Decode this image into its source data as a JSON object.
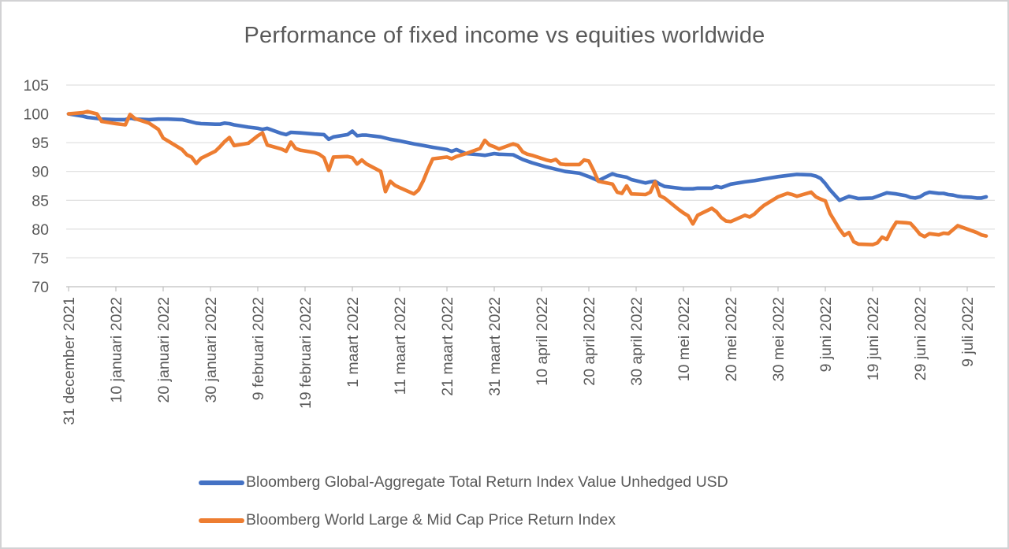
{
  "title": "Performance of fixed income vs equities worldwide",
  "colors": {
    "title_text": "#595959",
    "axis_text": "#595959",
    "gridline": "#d9d9d9",
    "axis_line": "#bfbfbf",
    "border": "#d2d2d4",
    "series_blue": "#4472C4",
    "series_orange": "#ED7D31"
  },
  "chart_data": {
    "type": "line",
    "title": "Performance of fixed income vs equities worldwide",
    "xlabel": "",
    "ylabel": "",
    "grid": true,
    "legend_position": "bottom",
    "y_axis": {
      "min": 70,
      "max": 105,
      "step": 5,
      "ticks": [
        105,
        100,
        95,
        90,
        85,
        80,
        75,
        70
      ]
    },
    "x_axis": {
      "unit": "days since 31 december 2021",
      "domain_days": [
        0,
        194
      ],
      "tick_interval_days": 10,
      "tick_labels": [
        "31 december 2021",
        "10 januari 2022",
        "20 januari 2022",
        "30 januari 2022",
        "9 februari 2022",
        "19 februari 2022",
        "1 maart 2022",
        "11 maart 2022",
        "21 maart 2022",
        "31 maart 2022",
        "10 april 2022",
        "20 april 2022",
        "30 april 2022",
        "10 mei 2022",
        "20 mei 2022",
        "30 mei 2022",
        "9 juni 2022",
        "19 juni 2022",
        "29 juni 2022",
        "9 juli 2022"
      ]
    },
    "series": [
      {
        "name": "Bloomberg Global-Aggregate Total Return Index Value Unhedged USD",
        "color": "#4472C4",
        "points": [
          [
            0,
            100
          ],
          [
            3,
            99.6
          ],
          [
            4,
            99.4
          ],
          [
            6,
            99.2
          ],
          [
            7,
            99.1
          ],
          [
            10,
            99.0
          ],
          [
            12,
            99.0
          ],
          [
            13,
            99.3
          ],
          [
            14,
            99.1
          ],
          [
            17,
            99.0
          ],
          [
            19,
            99.1
          ],
          [
            21,
            99.1
          ],
          [
            24,
            99.0
          ],
          [
            25,
            98.8
          ],
          [
            26,
            98.6
          ],
          [
            27,
            98.4
          ],
          [
            28,
            98.3
          ],
          [
            31,
            98.2
          ],
          [
            32,
            98.2
          ],
          [
            33,
            98.4
          ],
          [
            34,
            98.3
          ],
          [
            35,
            98.1
          ],
          [
            38,
            97.7
          ],
          [
            40,
            97.5
          ],
          [
            41,
            97.3
          ],
          [
            42,
            97.5
          ],
          [
            45,
            96.6
          ],
          [
            46,
            96.4
          ],
          [
            47,
            96.8
          ],
          [
            49,
            96.7
          ],
          [
            52,
            96.5
          ],
          [
            54,
            96.4
          ],
          [
            55,
            95.6
          ],
          [
            56,
            96.0
          ],
          [
            59,
            96.4
          ],
          [
            60,
            97.0
          ],
          [
            61,
            96.2
          ],
          [
            62,
            96.3
          ],
          [
            63,
            96.3
          ],
          [
            66,
            96.0
          ],
          [
            67,
            95.8
          ],
          [
            68,
            95.6
          ],
          [
            70,
            95.3
          ],
          [
            73,
            94.8
          ],
          [
            75,
            94.5
          ],
          [
            77,
            94.2
          ],
          [
            80,
            93.8
          ],
          [
            81,
            93.5
          ],
          [
            82,
            93.8
          ],
          [
            84,
            93.1
          ],
          [
            87,
            92.9
          ],
          [
            88,
            92.8
          ],
          [
            90,
            93.1
          ],
          [
            91,
            93.0
          ],
          [
            94,
            92.9
          ],
          [
            96,
            92.1
          ],
          [
            98,
            91.5
          ],
          [
            101,
            90.8
          ],
          [
            103,
            90.4
          ],
          [
            105,
            90.0
          ],
          [
            108,
            89.7
          ],
          [
            110,
            89.1
          ],
          [
            112,
            88.4
          ],
          [
            115,
            89.6
          ],
          [
            116,
            89.3
          ],
          [
            118,
            89.0
          ],
          [
            119,
            88.6
          ],
          [
            122,
            88.0
          ],
          [
            123,
            88.2
          ],
          [
            124,
            88.3
          ],
          [
            125,
            87.8
          ],
          [
            126,
            87.4
          ],
          [
            129,
            87.1
          ],
          [
            130,
            87.0
          ],
          [
            132,
            87.0
          ],
          [
            133,
            87.1
          ],
          [
            136,
            87.1
          ],
          [
            137,
            87.4
          ],
          [
            138,
            87.2
          ],
          [
            140,
            87.8
          ],
          [
            143,
            88.2
          ],
          [
            145,
            88.4
          ],
          [
            147,
            88.7
          ],
          [
            150,
            89.1
          ],
          [
            152,
            89.3
          ],
          [
            154,
            89.5
          ],
          [
            157,
            89.4
          ],
          [
            158,
            89.2
          ],
          [
            159,
            88.8
          ],
          [
            160,
            87.9
          ],
          [
            161,
            86.8
          ],
          [
            163,
            85.0
          ],
          [
            165,
            85.7
          ],
          [
            167,
            85.3
          ],
          [
            170,
            85.4
          ],
          [
            172,
            86.0
          ],
          [
            173,
            86.3
          ],
          [
            174,
            86.2
          ],
          [
            175,
            86.1
          ],
          [
            177,
            85.8
          ],
          [
            178,
            85.5
          ],
          [
            179,
            85.4
          ],
          [
            180,
            85.6
          ],
          [
            181,
            86.1
          ],
          [
            182,
            86.4
          ],
          [
            184,
            86.2
          ],
          [
            185,
            86.2
          ],
          [
            186,
            86.0
          ],
          [
            187,
            85.9
          ],
          [
            188,
            85.7
          ],
          [
            189,
            85.6
          ],
          [
            191,
            85.5
          ],
          [
            192,
            85.4
          ],
          [
            193,
            85.4
          ],
          [
            194,
            85.6
          ]
        ]
      },
      {
        "name": "Bloomberg World Large & Mid Cap Price Return Index",
        "color": "#ED7D31",
        "points": [
          [
            0,
            100
          ],
          [
            3,
            100.2
          ],
          [
            4,
            100.4
          ],
          [
            6,
            100.0
          ],
          [
            7,
            98.7
          ],
          [
            10,
            98.3
          ],
          [
            12,
            98.1
          ],
          [
            13,
            99.9
          ],
          [
            14,
            99.2
          ],
          [
            17,
            98.4
          ],
          [
            19,
            97.3
          ],
          [
            20,
            95.8
          ],
          [
            21,
            95.3
          ],
          [
            24,
            93.8
          ],
          [
            25,
            92.9
          ],
          [
            26,
            92.5
          ],
          [
            27,
            91.4
          ],
          [
            28,
            92.3
          ],
          [
            31,
            93.5
          ],
          [
            32,
            94.3
          ],
          [
            33,
            95.2
          ],
          [
            34,
            95.9
          ],
          [
            35,
            94.5
          ],
          [
            38,
            94.9
          ],
          [
            40,
            96.2
          ],
          [
            41,
            96.7
          ],
          [
            42,
            94.6
          ],
          [
            45,
            93.9
          ],
          [
            46,
            93.5
          ],
          [
            47,
            95.1
          ],
          [
            48,
            94.0
          ],
          [
            49,
            93.7
          ],
          [
            52,
            93.3
          ],
          [
            53,
            93.0
          ],
          [
            54,
            92.4
          ],
          [
            55,
            90.2
          ],
          [
            56,
            92.5
          ],
          [
            59,
            92.6
          ],
          [
            60,
            92.4
          ],
          [
            61,
            91.3
          ],
          [
            62,
            92.0
          ],
          [
            63,
            91.3
          ],
          [
            66,
            90.0
          ],
          [
            67,
            86.5
          ],
          [
            68,
            88.3
          ],
          [
            69,
            87.6
          ],
          [
            70,
            87.2
          ],
          [
            73,
            86.1
          ],
          [
            74,
            86.8
          ],
          [
            75,
            88.4
          ],
          [
            76,
            90.4
          ],
          [
            77,
            92.2
          ],
          [
            80,
            92.5
          ],
          [
            81,
            92.2
          ],
          [
            82,
            92.6
          ],
          [
            84,
            93.1
          ],
          [
            87,
            94.0
          ],
          [
            88,
            95.4
          ],
          [
            89,
            94.6
          ],
          [
            90,
            94.3
          ],
          [
            91,
            93.9
          ],
          [
            94,
            94.8
          ],
          [
            95,
            94.5
          ],
          [
            96,
            93.4
          ],
          [
            97,
            93.0
          ],
          [
            98,
            92.8
          ],
          [
            101,
            92.0
          ],
          [
            102,
            91.8
          ],
          [
            103,
            92.1
          ],
          [
            104,
            91.3
          ],
          [
            105,
            91.2
          ],
          [
            108,
            91.2
          ],
          [
            109,
            92.0
          ],
          [
            110,
            91.8
          ],
          [
            111,
            90.2
          ],
          [
            112,
            88.3
          ],
          [
            115,
            87.8
          ],
          [
            116,
            86.4
          ],
          [
            117,
            86.2
          ],
          [
            118,
            87.5
          ],
          [
            119,
            86.1
          ],
          [
            122,
            86.0
          ],
          [
            123,
            86.4
          ],
          [
            124,
            88.2
          ],
          [
            125,
            85.8
          ],
          [
            126,
            85.4
          ],
          [
            129,
            83.4
          ],
          [
            130,
            82.8
          ],
          [
            131,
            82.3
          ],
          [
            132,
            80.9
          ],
          [
            133,
            82.4
          ],
          [
            136,
            83.6
          ],
          [
            137,
            83.0
          ],
          [
            138,
            82.0
          ],
          [
            139,
            81.4
          ],
          [
            140,
            81.3
          ],
          [
            143,
            82.4
          ],
          [
            144,
            82.1
          ],
          [
            145,
            82.6
          ],
          [
            146,
            83.4
          ],
          [
            147,
            84.1
          ],
          [
            150,
            85.6
          ],
          [
            151,
            85.9
          ],
          [
            152,
            86.2
          ],
          [
            153,
            86.0
          ],
          [
            154,
            85.7
          ],
          [
            157,
            86.4
          ],
          [
            158,
            85.6
          ],
          [
            159,
            85.2
          ],
          [
            160,
            84.9
          ],
          [
            161,
            82.7
          ],
          [
            163,
            80.0
          ],
          [
            164,
            78.9
          ],
          [
            165,
            79.4
          ],
          [
            166,
            77.8
          ],
          [
            167,
            77.4
          ],
          [
            170,
            77.3
          ],
          [
            171,
            77.6
          ],
          [
            172,
            78.6
          ],
          [
            173,
            78.2
          ],
          [
            174,
            79.9
          ],
          [
            175,
            81.2
          ],
          [
            177,
            81.1
          ],
          [
            178,
            81.0
          ],
          [
            179,
            80.1
          ],
          [
            180,
            79.1
          ],
          [
            181,
            78.7
          ],
          [
            182,
            79.2
          ],
          [
            184,
            79.0
          ],
          [
            185,
            79.3
          ],
          [
            186,
            79.2
          ],
          [
            187,
            79.9
          ],
          [
            188,
            80.6
          ],
          [
            189,
            80.3
          ],
          [
            192,
            79.4
          ],
          [
            193,
            79.0
          ],
          [
            194,
            78.8
          ]
        ]
      }
    ]
  }
}
